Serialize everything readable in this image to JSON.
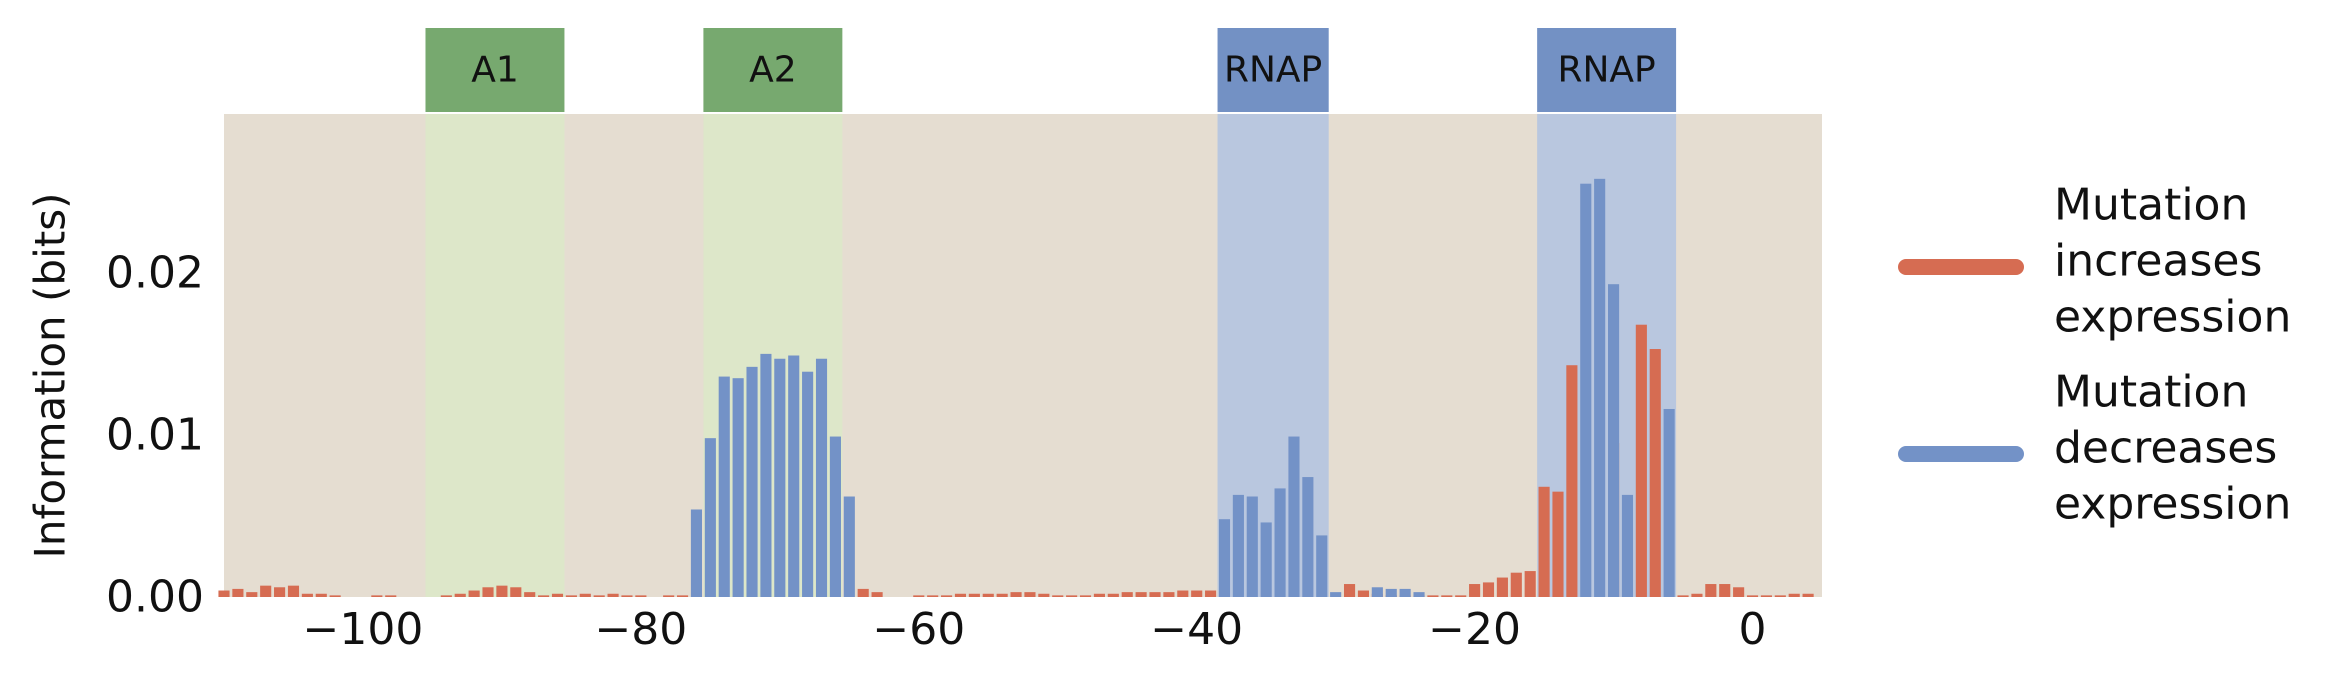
{
  "chart_data": {
    "type": "bar",
    "title": "",
    "xlabel": "",
    "ylabel": "Information (bits)",
    "xlim": [
      -110,
      5
    ],
    "ylim": [
      0,
      0.0298
    ],
    "xticks": [
      -100,
      -80,
      -60,
      -40,
      -20,
      0
    ],
    "xtick_labels": [
      "−100",
      "−80",
      "−60",
      "−40",
      "−20",
      "0"
    ],
    "yticks": [
      0,
      0.01,
      0.02
    ],
    "ytick_labels": [
      "0.00",
      "0.01",
      "0.02"
    ],
    "grid": false,
    "legend_position": "right",
    "colors": {
      "plot_background": "#e5ddd1",
      "increases": "#d66c52",
      "decreases": "#7392c7",
      "activator_region": "#dde7c9",
      "activator_label_box": "#77a96f",
      "rnap_region": "#b9c7df",
      "rnap_label_box": "#7391c4"
    },
    "regions": [
      {
        "label": "A1",
        "kind": "activator",
        "start": -95.5,
        "end": -85.5
      },
      {
        "label": "A2",
        "kind": "activator",
        "start": -75.5,
        "end": -65.5
      },
      {
        "label": "RNAP",
        "kind": "rnap",
        "start": -38.5,
        "end": -30.5
      },
      {
        "label": "RNAP",
        "kind": "rnap",
        "start": -15.5,
        "end": -5.5
      }
    ],
    "series": [
      {
        "key": "increases",
        "name": "Mutation increases expression",
        "x": [
          -110,
          -109,
          -108,
          -107,
          -106,
          -105,
          -104,
          -103,
          -102,
          -99,
          -98,
          -94,
          -93,
          -92,
          -91,
          -90,
          -89,
          -88,
          -87,
          -86,
          -85,
          -84,
          -83,
          -82,
          -81,
          -80,
          -78,
          -77,
          -64,
          -63,
          -60,
          -59,
          -58,
          -57,
          -56,
          -55,
          -54,
          -53,
          -52,
          -51,
          -50,
          -49,
          -48,
          -47,
          -46,
          -45,
          -44,
          -43,
          -42,
          -41,
          -40,
          -39,
          -29,
          -28,
          -27,
          -26,
          -25,
          -24,
          -23,
          -22,
          -21,
          -20,
          -19,
          -18,
          -17,
          -16,
          -15,
          -14,
          -13,
          -10,
          -8,
          -7,
          -5,
          -4,
          -3,
          -2,
          -1,
          0,
          1,
          2,
          3,
          4
        ],
        "values": [
          0.0004,
          0.0005,
          0.0003,
          0.0007,
          0.0006,
          0.0007,
          0.0002,
          0.0002,
          0.0001,
          0.0001,
          0.0001,
          0.0001,
          0.0002,
          0.0004,
          0.0006,
          0.0007,
          0.0006,
          0.0003,
          0.0001,
          0.0002,
          0.0001,
          0.0002,
          0.0001,
          0.0002,
          0.0001,
          0.0001,
          0.0001,
          0.0001,
          0.0005,
          0.0003,
          0.0001,
          0.0001,
          0.0001,
          0.0002,
          0.0002,
          0.0002,
          0.0002,
          0.0003,
          0.0003,
          0.0002,
          0.0001,
          0.0001,
          0.0001,
          0.0002,
          0.0002,
          0.0003,
          0.0003,
          0.0003,
          0.0003,
          0.0004,
          0.0004,
          0.0004,
          0.0008,
          0.0004,
          0.0002,
          0.0001,
          0.0001,
          0.0001,
          0.0001,
          0.0001,
          0.0001,
          0.0008,
          0.0009,
          0.0012,
          0.0015,
          0.0016,
          0.0068,
          0.0065,
          0.0143,
          0.0095,
          0.0168,
          0.0153,
          0.0001,
          0.0002,
          0.0008,
          0.0008,
          0.0006,
          0.0001,
          0.0001,
          0.0001,
          0.0002,
          0.0002
        ]
      },
      {
        "key": "decreases",
        "name": "Mutation decreases expression",
        "x": [
          -76,
          -75,
          -74,
          -73,
          -72,
          -71,
          -70,
          -69,
          -68,
          -67,
          -66,
          -65,
          -38,
          -37,
          -36,
          -35,
          -34,
          -33,
          -32,
          -31,
          -30,
          -27,
          -26,
          -25,
          -24,
          -12,
          -11,
          -10,
          -9,
          -6
        ],
        "values": [
          0.0054,
          0.0098,
          0.0136,
          0.0135,
          0.0142,
          0.015,
          0.0147,
          0.0149,
          0.0139,
          0.0147,
          0.0099,
          0.0062,
          0.0048,
          0.0063,
          0.0062,
          0.0046,
          0.0067,
          0.0099,
          0.0074,
          0.0038,
          0.0003,
          0.0006,
          0.0005,
          0.0005,
          0.0003,
          0.0255,
          0.0258,
          0.0193,
          0.0063,
          0.0116
        ]
      }
    ],
    "legend": [
      {
        "key": "increases",
        "lines": [
          "Mutation",
          "increases",
          "expression"
        ]
      },
      {
        "key": "decreases",
        "lines": [
          "Mutation",
          "decreases",
          "expression"
        ]
      }
    ]
  }
}
